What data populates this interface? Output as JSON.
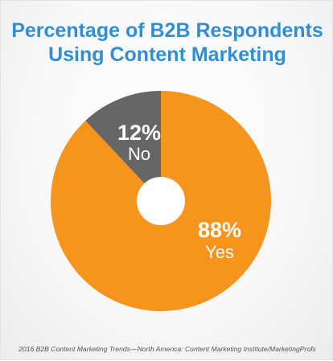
{
  "header": {
    "title_line1": "Percentage of B2B Respondents",
    "title_line2": "Using Content Marketing"
  },
  "colors": {
    "title": "#2f8fd6",
    "yes": "#f7941d",
    "no": "#666666",
    "label_text": "#ffffff"
  },
  "chart_data": {
    "type": "pie",
    "categories": [
      "No",
      "Yes"
    ],
    "values": [
      12,
      88
    ],
    "value_labels": [
      "12%",
      "88%"
    ],
    "colors": [
      "#666666",
      "#f7941d"
    ],
    "donut_hole": true,
    "start_category": "No",
    "title": "Percentage of B2B Respondents Using Content Marketing"
  },
  "footer": {
    "source": "2016 B2B Content Marketing Trends—North America: Content Marketing Institute/MarketingProfs"
  }
}
